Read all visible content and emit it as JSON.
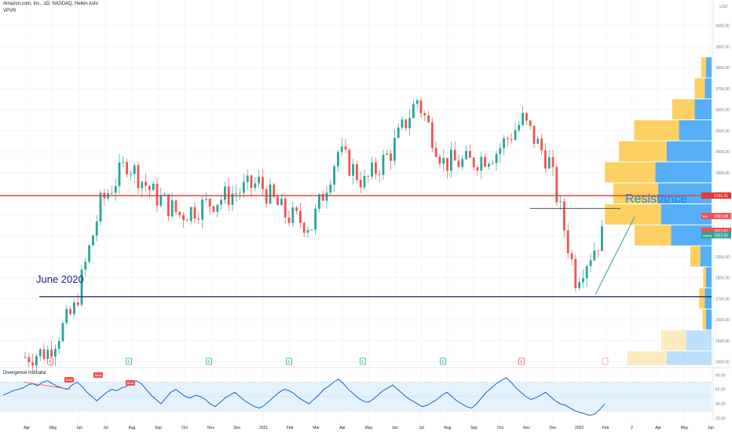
{
  "header": {
    "title": "Amazon.com, Inc., 1D, NASDAQ, Heikin Ashi",
    "indicator": "VPVR"
  },
  "oscillator": {
    "title": "Divergence Indicator"
  },
  "colors": {
    "up": "#26a69a",
    "down": "#ef5350",
    "resistance_line": "#e53935",
    "support_line": "#1a237e",
    "vp_up": "#42a5f5",
    "vp_down": "#fbc02d",
    "osc_line": "#1565c0",
    "osc_band": "#e3f2fd",
    "trend_line": "#26a69a"
  },
  "chart_data": [
    {
      "type": "candlestick",
      "title": "Amazon.com, Inc., 1D, NASDAQ, Heikin Ashi",
      "price_unit": "USD",
      "y_ticks": [
        "2400.00",
        "2500.00",
        "2600.00",
        "2700.00",
        "2800.00",
        "2900.00",
        "3000.00",
        "3100.00",
        "3200.00",
        "3300.00",
        "3400.00",
        "3500.00",
        "3600.00",
        "3700.00",
        "3800.00",
        "3900.00",
        "4000.00"
      ],
      "ylim": [
        2380,
        4100
      ],
      "x_ticks": [
        "Apr",
        "May",
        "Jun",
        "Jul",
        "Aug",
        "Sep",
        "Oct",
        "Nov",
        "Dec",
        "2021",
        "Feb",
        "Mar",
        "Apr",
        "May",
        "Jun",
        "Jul",
        "Aug",
        "Sep",
        "Oct",
        "Nov",
        "Dec",
        "2022",
        "Feb",
        "2",
        "Apr",
        "May",
        "Jun"
      ],
      "monthly_closes": [
        {
          "month": "2020-04",
          "value": 2420
        },
        {
          "month": "2020-05",
          "value": 2450
        },
        {
          "month": "2020-06",
          "value": 2650
        },
        {
          "month": "2020-07",
          "value": 3150
        },
        {
          "month": "2020-08",
          "value": 3350
        },
        {
          "month": "2020-09",
          "value": 3200
        },
        {
          "month": "2020-10",
          "value": 3100
        },
        {
          "month": "2020-11",
          "value": 3150
        },
        {
          "month": "2020-12",
          "value": 3200
        },
        {
          "month": "2021-01",
          "value": 3250
        },
        {
          "month": "2021-02",
          "value": 3100
        },
        {
          "month": "2021-03",
          "value": 3050
        },
        {
          "month": "2021-04",
          "value": 3400
        },
        {
          "month": "2021-05",
          "value": 3250
        },
        {
          "month": "2021-06",
          "value": 3400
        },
        {
          "month": "2021-07",
          "value": 3650
        },
        {
          "month": "2021-08",
          "value": 3350
        },
        {
          "month": "2021-09",
          "value": 3350
        },
        {
          "month": "2021-10",
          "value": 3400
        },
        {
          "month": "2021-11",
          "value": 3550
        },
        {
          "month": "2021-12",
          "value": 3350
        },
        {
          "month": "2022-01",
          "value": 2800
        },
        {
          "month": "2022-02",
          "value": 3000
        }
      ],
      "horizontal_lines": [
        {
          "name": "resistance",
          "value": 3191.21
        },
        {
          "name": "support",
          "value": 2710
        }
      ],
      "annotations": [
        "June 2020",
        "Resistance"
      ],
      "price_labels": [
        {
          "label": "3191.21"
        },
        {
          "prefix": "Bid",
          "label": "3093.98"
        },
        {
          "label": "3023.87"
        },
        {
          "prefix": "AMZN",
          "label": "3002.65"
        }
      ],
      "event_markers": [
        "E",
        "E",
        "E",
        "E",
        "E",
        "E",
        "E"
      ],
      "volume_profile": [
        {
          "price_from": 3750,
          "price_to": 3850,
          "up": 0.1,
          "down": 0.08
        },
        {
          "price_from": 3650,
          "price_to": 3750,
          "up": 0.12,
          "down": 0.18
        },
        {
          "price_from": 3550,
          "price_to": 3650,
          "up": 0.3,
          "down": 0.4
        },
        {
          "price_from": 3450,
          "price_to": 3550,
          "up": 0.58,
          "down": 0.8
        },
        {
          "price_from": 3350,
          "price_to": 3450,
          "up": 0.8,
          "down": 0.85
        },
        {
          "price_from": 3250,
          "price_to": 3350,
          "up": 1.0,
          "down": 0.9
        },
        {
          "price_from": 3150,
          "price_to": 3250,
          "up": 0.95,
          "down": 0.8
        },
        {
          "price_from": 3050,
          "price_to": 3150,
          "up": 0.9,
          "down": 1.0
        },
        {
          "price_from": 2950,
          "price_to": 3050,
          "up": 0.72,
          "down": 0.65
        },
        {
          "price_from": 2850,
          "price_to": 2950,
          "up": 0.2,
          "down": 0.18
        },
        {
          "price_from": 2750,
          "price_to": 2850,
          "up": 0.1,
          "down": 0.05
        },
        {
          "price_from": 2650,
          "price_to": 2750,
          "up": 0.12,
          "down": 0.1
        },
        {
          "price_from": 2550,
          "price_to": 2650,
          "up": 0.1,
          "down": 0.06
        },
        {
          "price_from": 2450,
          "price_to": 2550,
          "up": 0.45,
          "down": 0.45
        },
        {
          "price_from": 2380,
          "price_to": 2450,
          "up": 0.8,
          "down": 0.7
        }
      ]
    },
    {
      "type": "line",
      "title": "Divergence Indicator",
      "y_ticks": [
        "20.00",
        "40.00",
        "60.00",
        "80.00"
      ],
      "ylim": [
        15,
        88
      ],
      "band": [
        30,
        70
      ],
      "divergence_labels": [
        "Bear",
        "Bear",
        "Bear"
      ],
      "values": [
        52,
        55,
        58,
        60,
        62,
        66,
        68,
        65,
        70,
        72,
        68,
        64,
        62,
        60,
        66,
        70,
        64,
        56,
        50,
        44,
        50,
        56,
        60,
        58,
        62,
        64,
        70,
        72,
        68,
        60,
        52,
        46,
        40,
        48,
        56,
        60,
        55,
        50,
        48,
        52,
        50,
        46,
        40,
        36,
        42,
        48,
        52,
        56,
        50,
        44,
        40,
        36,
        34,
        38,
        44,
        50,
        56,
        60,
        58,
        54,
        48,
        44,
        40,
        46,
        52,
        60,
        64,
        70,
        74,
        68,
        60,
        54,
        48,
        44,
        42,
        46,
        52,
        58,
        62,
        66,
        60,
        54,
        48,
        44,
        40,
        36,
        38,
        42,
        46,
        52,
        56,
        50,
        44,
        40,
        36,
        34,
        40,
        48,
        56,
        62,
        68,
        72,
        76,
        70,
        62,
        56,
        50,
        46,
        48,
        52,
        56,
        50,
        44,
        40,
        38,
        34,
        30,
        28,
        26,
        24,
        26,
        32,
        40
      ]
    }
  ]
}
